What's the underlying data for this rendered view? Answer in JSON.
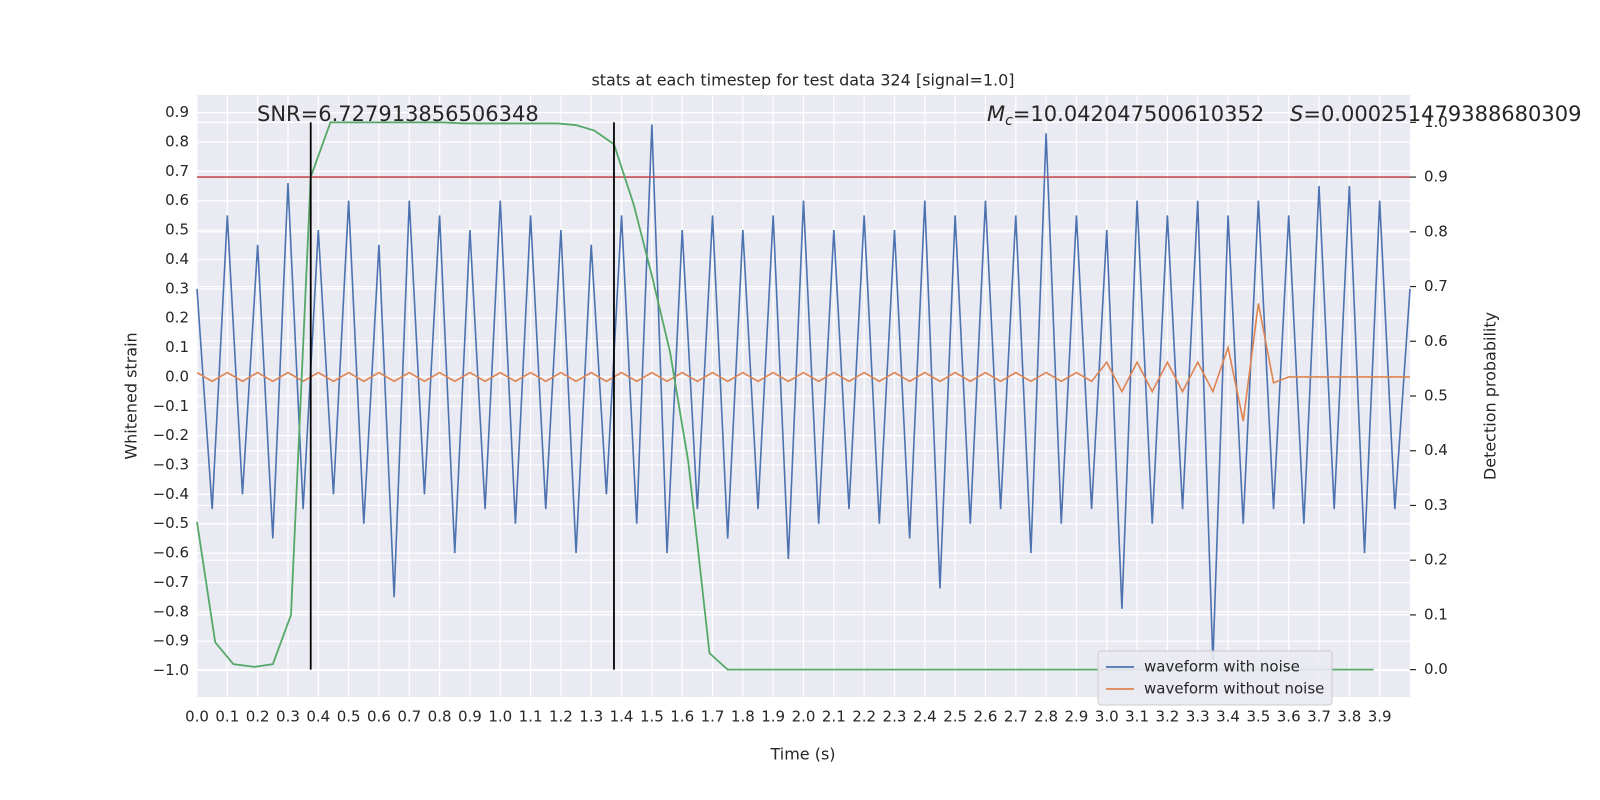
{
  "chart_data": {
    "type": "line",
    "title": "stats at each timestep for test data 324 [signal=1.0]",
    "x_label": "Time (s)",
    "y_label": "Whitened strain",
    "y2_label": "Detection probability",
    "annotations": {
      "snr": "SNR=6.727913856506348",
      "chirp_mass": {
        "symbol": "M",
        "subscript": "c",
        "text": "=10.042047500610352"
      },
      "s": {
        "symbol": "S",
        "text": "=0.000251479388680309"
      }
    },
    "xlim": [
      0,
      4.0
    ],
    "ylim": [
      -1.09,
      0.96
    ],
    "y2lim": [
      -0.05,
      1.05
    ],
    "grid": true,
    "legend": "lower right",
    "xticks": [
      {
        "value": 0,
        "label": "0.0"
      },
      0.1,
      0.2,
      0.3,
      0.4,
      0.5,
      0.6,
      0.7,
      0.8,
      0.9,
      {
        "value": 1,
        "label": "1.0"
      },
      1.1,
      1.2,
      1.3,
      1.4,
      1.5,
      1.6,
      1.7,
      1.8,
      1.9,
      {
        "value": 2,
        "label": "2.0"
      },
      2.1,
      2.2,
      2.3,
      2.4,
      2.5,
      2.6,
      2.7,
      2.8,
      2.9,
      {
        "value": 3,
        "label": "3.0"
      },
      3.1,
      3.2,
      3.3,
      3.4,
      3.5,
      3.6,
      3.7,
      3.8,
      3.9
    ],
    "yticks": [
      {
        "value": -1,
        "label": "−1.0"
      },
      {
        "value": -0.9,
        "label": "−0.9"
      },
      {
        "value": -0.8,
        "label": "−0.8"
      },
      {
        "value": -0.7,
        "label": "−0.7"
      },
      {
        "value": -0.6,
        "label": "−0.6"
      },
      {
        "value": -0.5,
        "label": "−0.5"
      },
      {
        "value": -0.4,
        "label": "−0.4"
      },
      {
        "value": -0.3,
        "label": "−0.3"
      },
      {
        "value": -0.2,
        "label": "−0.2"
      },
      {
        "value": -0.1,
        "label": "−0.1"
      },
      {
        "value": 0,
        "label": "0.0"
      },
      0.1,
      0.2,
      0.3,
      0.4,
      0.5,
      0.6,
      0.7,
      0.8,
      0.9
    ],
    "y2ticks": [
      {
        "value": 0,
        "label": "0.0"
      },
      0.1,
      0.2,
      0.3,
      0.4,
      0.5,
      0.6,
      0.7,
      0.8,
      0.9,
      {
        "value": 1,
        "label": "1.0"
      }
    ],
    "x": [
      0,
      0.05,
      0.1,
      0.15,
      0.2,
      0.25,
      0.3,
      0.35,
      0.4,
      0.45,
      0.5,
      0.55,
      0.6,
      0.65,
      0.7,
      0.75,
      0.8,
      0.85,
      0.9,
      0.95,
      1.0,
      1.05,
      1.1,
      1.15,
      1.2,
      1.25,
      1.3,
      1.35,
      1.4,
      1.45,
      1.5,
      1.55,
      1.6,
      1.65,
      1.7,
      1.75,
      1.8,
      1.85,
      1.9,
      1.95,
      2.0,
      2.05,
      2.1,
      2.15,
      2.2,
      2.25,
      2.3,
      2.35,
      2.4,
      2.45,
      2.5,
      2.55,
      2.6,
      2.65,
      2.7,
      2.75,
      2.8,
      2.85,
      2.9,
      2.95,
      3.0,
      3.05,
      3.1,
      3.15,
      3.2,
      3.25,
      3.3,
      3.35,
      3.4,
      3.45,
      3.5,
      3.55,
      3.6,
      3.65,
      3.7,
      3.75,
      3.8,
      3.85,
      3.9,
      3.95,
      4.0
    ],
    "series": [
      {
        "name": "waveform with noise",
        "color": "#4c72b0",
        "values": [
          0.3,
          -0.45,
          0.55,
          -0.4,
          0.45,
          -0.55,
          0.66,
          -0.45,
          0.5,
          -0.4,
          0.6,
          -0.5,
          0.45,
          -0.75,
          0.6,
          -0.4,
          0.55,
          -0.6,
          0.5,
          -0.45,
          0.6,
          -0.5,
          0.55,
          -0.45,
          0.5,
          -0.6,
          0.45,
          -0.4,
          0.55,
          -0.5,
          0.86,
          -0.6,
          0.5,
          -0.45,
          0.55,
          -0.55,
          0.5,
          -0.45,
          0.55,
          -0.62,
          0.6,
          -0.5,
          0.5,
          -0.45,
          0.55,
          -0.5,
          0.5,
          -0.55,
          0.6,
          -0.72,
          0.55,
          -0.5,
          0.6,
          -0.45,
          0.55,
          -0.6,
          0.83,
          -0.5,
          0.55,
          -0.45,
          0.5,
          -0.79,
          0.6,
          -0.5,
          0.55,
          -0.45,
          0.6,
          -0.97,
          0.55,
          -0.5,
          0.6,
          -0.45,
          0.55,
          -0.5,
          0.65,
          -0.45,
          0.65,
          -0.6,
          0.6,
          -0.45,
          0.3
        ]
      },
      {
        "name": "waveform without noise",
        "color": "#dd8452",
        "values": [
          0.015,
          -0.015,
          0.015,
          -0.015,
          0.015,
          -0.015,
          0.015,
          -0.015,
          0.015,
          -0.015,
          0.015,
          -0.015,
          0.015,
          -0.015,
          0.015,
          -0.015,
          0.015,
          -0.015,
          0.015,
          -0.015,
          0.015,
          -0.015,
          0.015,
          -0.015,
          0.015,
          -0.015,
          0.015,
          -0.015,
          0.015,
          -0.015,
          0.015,
          -0.015,
          0.015,
          -0.015,
          0.015,
          -0.015,
          0.015,
          -0.015,
          0.015,
          -0.015,
          0.015,
          -0.015,
          0.015,
          -0.015,
          0.015,
          -0.015,
          0.015,
          -0.015,
          0.015,
          -0.015,
          0.015,
          -0.015,
          0.015,
          -0.015,
          0.015,
          -0.015,
          0.015,
          -0.015,
          0.015,
          -0.015,
          0.05,
          -0.05,
          0.05,
          -0.05,
          0.05,
          -0.05,
          0.05,
          -0.05,
          0.1,
          -0.15,
          0.25,
          -0.02,
          0,
          0,
          0,
          0,
          0,
          0,
          0,
          0,
          0
        ]
      }
    ],
    "probability": {
      "color": "#55a868",
      "axis": "y2",
      "x": [
        0,
        0.06,
        0.12,
        0.19,
        0.25,
        0.31,
        0.375,
        0.44,
        0.5,
        0.56,
        0.62,
        0.69,
        0.75,
        0.81,
        0.88,
        0.94,
        1.0,
        1.06,
        1.12,
        1.19,
        1.25,
        1.31,
        1.375,
        1.44,
        1.5,
        1.56,
        1.62,
        1.69,
        1.75,
        3.88
      ],
      "values": [
        0.27,
        0.05,
        0.01,
        0.005,
        0.01,
        0.1,
        0.9,
        1.0,
        1.0,
        1.0,
        1.0,
        1.0,
        1.0,
        1.0,
        0.998,
        0.998,
        0.998,
        0.998,
        0.998,
        0.998,
        0.995,
        0.985,
        0.96,
        0.85,
        0.72,
        0.58,
        0.38,
        0.03,
        0.0,
        0.0
      ]
    },
    "threshold": {
      "y2": 0.9,
      "color": "#c44e52"
    },
    "vlines": {
      "x": [
        0.375,
        1.375
      ],
      "y2": [
        0,
        1
      ],
      "color": "#000000"
    }
  }
}
